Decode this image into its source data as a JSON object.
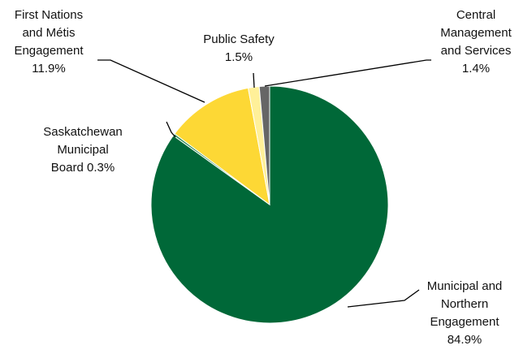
{
  "chart_data": {
    "type": "pie",
    "title": "",
    "start_angle_deg": 0,
    "direction": "clockwise",
    "legend": "none",
    "slices": [
      {
        "id": "mne",
        "lines": [
          "Municipal and",
          "Northern",
          "Engagement",
          "84.9%"
        ],
        "value": 84.9,
        "color": "#006838"
      },
      {
        "id": "smb",
        "lines": [
          "Saskatchewan",
          "Municipal",
          "Board 0.3%"
        ],
        "value": 0.3,
        "color": "#2E8B57"
      },
      {
        "id": "fnme",
        "lines": [
          "First Nations",
          "and Métis",
          "Engagement",
          "11.9%"
        ],
        "value": 11.9,
        "color": "#FDD835"
      },
      {
        "id": "ps",
        "lines": [
          "Public Safety",
          "1.5%"
        ],
        "value": 1.5,
        "color": "#FFF099"
      },
      {
        "id": "cms",
        "lines": [
          "Central",
          "Management",
          "and Services",
          "1.4%"
        ],
        "value": 1.4,
        "color": "#666666"
      }
    ]
  }
}
